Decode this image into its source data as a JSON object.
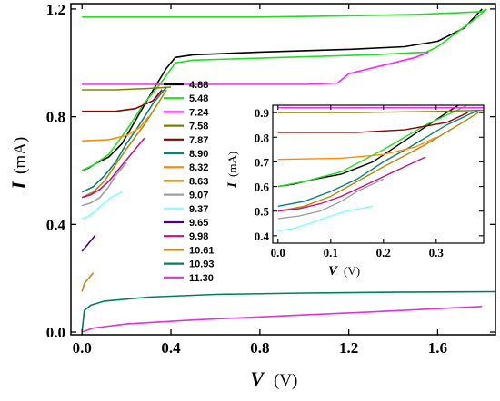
{
  "chart_data": {
    "type": "line",
    "xlabel": "V",
    "xunit": "(V)",
    "ylabel": "I",
    "yunit": "(mA)",
    "xlim": [
      -0.05,
      1.86
    ],
    "ylim": [
      -0.01,
      1.22
    ],
    "xticks": [
      "0.0",
      "0.4",
      "0.8",
      "1.2",
      "1.6"
    ],
    "xtick_values": [
      0.0,
      0.4,
      0.8,
      1.2,
      1.6
    ],
    "yticks": [
      "0.0",
      "0.4",
      "0.8",
      "1.2"
    ],
    "ytick_values": [
      0.0,
      0.4,
      0.8,
      1.2
    ],
    "legend_position": "center-left",
    "series": [
      {
        "name": "4.88",
        "color": "#000000",
        "points": [
          [
            0.0,
            0.6
          ],
          [
            0.03,
            0.61
          ],
          [
            0.07,
            0.63
          ],
          [
            0.12,
            0.65
          ],
          [
            0.18,
            0.7
          ],
          [
            0.25,
            0.8
          ],
          [
            0.32,
            0.9
          ],
          [
            0.38,
            0.98
          ],
          [
            0.42,
            1.02
          ],
          [
            0.5,
            1.03
          ],
          [
            0.8,
            1.04
          ],
          [
            1.2,
            1.05
          ],
          [
            1.45,
            1.06
          ],
          [
            1.6,
            1.08
          ],
          [
            1.72,
            1.13
          ],
          [
            1.8,
            1.2
          ]
        ]
      },
      {
        "name": "5.48",
        "color": "#22dd22",
        "points": [
          [
            0.0,
            1.17
          ],
          [
            0.8,
            1.17
          ],
          [
            1.2,
            1.175
          ],
          [
            1.5,
            1.18
          ],
          [
            1.8,
            1.19
          ],
          [
            1.82,
            1.2
          ],
          [
            1.78,
            1.17
          ],
          [
            1.6,
            1.06
          ],
          [
            1.55,
            1.04
          ],
          [
            1.3,
            1.03
          ],
          [
            0.9,
            1.02
          ],
          [
            0.5,
            1.01
          ],
          [
            0.42,
            1.0
          ],
          [
            0.35,
            0.92
          ],
          [
            0.28,
            0.85
          ],
          [
            0.2,
            0.75
          ],
          [
            0.12,
            0.66
          ],
          [
            0.05,
            0.62
          ],
          [
            0.0,
            0.6
          ]
        ]
      },
      {
        "name": "7.24",
        "color": "#ff22ff",
        "points": [
          [
            0.0,
            0.92
          ],
          [
            0.5,
            0.92
          ],
          [
            1.0,
            0.92
          ],
          [
            1.15,
            0.925
          ],
          [
            1.2,
            0.96
          ],
          [
            1.4,
            1.0
          ],
          [
            1.5,
            1.02
          ],
          [
            1.56,
            1.04
          ]
        ]
      },
      {
        "name": "7.58",
        "color": "#808000",
        "points": [
          [
            0.0,
            0.9
          ],
          [
            0.15,
            0.9
          ],
          [
            0.3,
            0.905
          ],
          [
            0.4,
            0.91
          ]
        ]
      },
      {
        "name": "7.87",
        "color": "#8b0000",
        "points": [
          [
            0.0,
            0.82
          ],
          [
            0.15,
            0.82
          ],
          [
            0.24,
            0.83
          ],
          [
            0.32,
            0.86
          ],
          [
            0.36,
            0.9
          ]
        ]
      },
      {
        "name": "8.90",
        "color": "#0d7f7f",
        "points": [
          [
            0.0,
            0.52
          ],
          [
            0.05,
            0.54
          ],
          [
            0.1,
            0.58
          ],
          [
            0.15,
            0.63
          ],
          [
            0.2,
            0.7
          ],
          [
            0.25,
            0.76
          ],
          [
            0.32,
            0.85
          ],
          [
            0.38,
            0.91
          ]
        ]
      },
      {
        "name": "8.32",
        "color": "#ff8c00",
        "points": [
          [
            0.0,
            0.71
          ],
          [
            0.12,
            0.715
          ],
          [
            0.2,
            0.73
          ],
          [
            0.26,
            0.76
          ],
          [
            0.3,
            0.8
          ]
        ]
      },
      {
        "name": "8.63",
        "color": "#b8860b",
        "points": [
          [
            0.0,
            0.5
          ],
          [
            0.05,
            0.52
          ],
          [
            0.1,
            0.56
          ],
          [
            0.15,
            0.62
          ],
          [
            0.2,
            0.68
          ],
          [
            0.28,
            0.77
          ],
          [
            0.35,
            0.86
          ],
          [
            0.38,
            0.9
          ]
        ]
      },
      {
        "name": "9.07",
        "color": "#a0a0a0",
        "points": [
          [
            0.0,
            0.47
          ],
          [
            0.04,
            0.48
          ],
          [
            0.08,
            0.5
          ],
          [
            0.12,
            0.54
          ],
          [
            0.15,
            0.58
          ],
          [
            0.2,
            0.63
          ]
        ]
      },
      {
        "name": "9.37",
        "color": "#80ffff",
        "points": [
          [
            0.0,
            0.42
          ],
          [
            0.03,
            0.43
          ],
          [
            0.06,
            0.45
          ],
          [
            0.1,
            0.48
          ],
          [
            0.13,
            0.5
          ],
          [
            0.18,
            0.52
          ]
        ]
      },
      {
        "name": "9.65",
        "color": "#4b0082",
        "points": [
          [
            0.0,
            0.3
          ],
          [
            0.02,
            0.32
          ],
          [
            0.04,
            0.34
          ],
          [
            0.06,
            0.36
          ]
        ]
      },
      {
        "name": "9.98",
        "color": "#c0148a",
        "points": [
          [
            0.0,
            0.5
          ],
          [
            0.04,
            0.51
          ],
          [
            0.08,
            0.53
          ],
          [
            0.12,
            0.56
          ],
          [
            0.16,
            0.6
          ],
          [
            0.22,
            0.66
          ],
          [
            0.28,
            0.72
          ]
        ]
      },
      {
        "name": "10.61",
        "color": "#c08a1a",
        "points": [
          [
            0.0,
            0.15
          ],
          [
            0.01,
            0.18
          ],
          [
            0.03,
            0.2
          ],
          [
            0.05,
            0.22
          ]
        ]
      },
      {
        "name": "10.93",
        "color": "#007f5f",
        "points": [
          [
            0.0,
            0.0
          ],
          [
            0.01,
            0.08
          ],
          [
            0.04,
            0.1
          ],
          [
            0.1,
            0.115
          ],
          [
            0.3,
            0.13
          ],
          [
            0.6,
            0.14
          ],
          [
            1.0,
            0.145
          ],
          [
            1.4,
            0.148
          ],
          [
            1.86,
            0.15
          ]
        ]
      },
      {
        "name": "11.30",
        "color": "#dd33dd",
        "points": [
          [
            0.0,
            0.0
          ],
          [
            0.05,
            0.015
          ],
          [
            0.2,
            0.03
          ],
          [
            0.5,
            0.045
          ],
          [
            0.9,
            0.06
          ],
          [
            1.3,
            0.075
          ],
          [
            1.6,
            0.087
          ],
          [
            1.8,
            0.095
          ]
        ]
      }
    ],
    "inset": {
      "xlabel": "V",
      "xunit": "(V)",
      "ylabel": "I",
      "yunit": "(mA)",
      "xlim": [
        -0.01,
        0.39
      ],
      "ylim": [
        0.37,
        0.93
      ],
      "xticks": [
        "0.0",
        "0.1",
        "0.2",
        "0.3"
      ],
      "xtick_values": [
        0.0,
        0.1,
        0.2,
        0.3
      ],
      "yticks": [
        "0.4",
        "0.5",
        "0.6",
        "0.7",
        "0.8",
        "0.9"
      ],
      "ytick_values": [
        0.4,
        0.5,
        0.6,
        0.7,
        0.8,
        0.9
      ]
    }
  }
}
